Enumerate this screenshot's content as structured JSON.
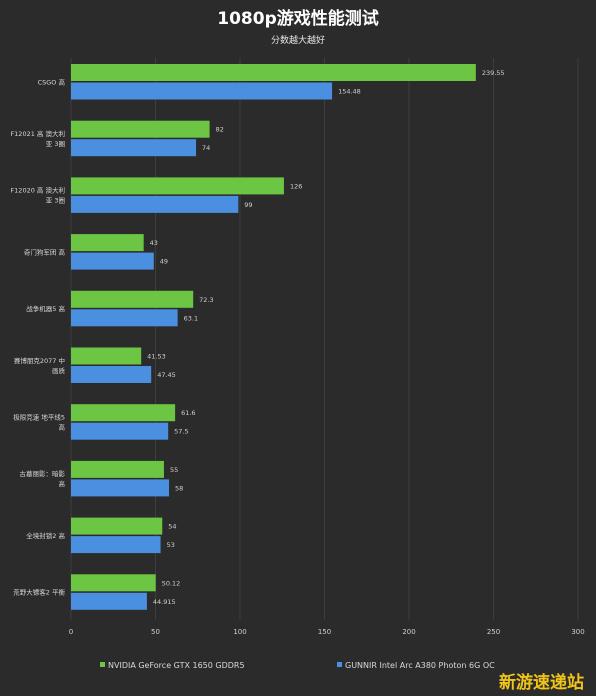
{
  "chart_data": {
    "type": "bar",
    "orientation": "horizontal",
    "title": "1080p游戏性能测试",
    "subtitle": "分数越大越好",
    "categories": [
      [
        "CSGO 高"
      ],
      [
        "F12021 高 澳大利",
        "亚 3圈"
      ],
      [
        "F12020 高 澳大利",
        "亚 3圈"
      ],
      [
        "奇门狗军团 高"
      ],
      [
        "战争机器5 高"
      ],
      [
        "赛博朋克2077 中",
        "画质"
      ],
      [
        "极限竞速 地平线5",
        "高"
      ],
      [
        "古墓丽影：暗影",
        "高"
      ],
      [
        "全境封锁2 高"
      ],
      [
        "荒野大镖客2 平衡"
      ]
    ],
    "series": [
      {
        "name": "NVIDIA GeForce GTX 1650  GDDR5",
        "color": "#6cc644",
        "values": [
          239.55,
          82,
          126,
          43,
          72.3,
          41.53,
          61.6,
          55,
          54,
          50.12
        ],
        "labels": [
          "239.55",
          "82",
          "126",
          "43",
          "72.3",
          "41.53",
          "61.6",
          "55",
          "54",
          "50.12"
        ]
      },
      {
        "name": "GUNNIR Intel Arc A380 Photon 6G OC",
        "color": "#4a8fe0",
        "values": [
          154.48,
          74,
          99,
          49,
          63.1,
          47.45,
          57.5,
          58,
          53,
          44.915
        ],
        "labels": [
          "154.48",
          "74",
          "99",
          "49",
          "63.1",
          "47.45",
          "57.5",
          "58",
          "53",
          "44.915"
        ]
      }
    ],
    "xlim": [
      0,
      300
    ],
    "xticks": [
      "0",
      "50",
      "100",
      "150",
      "200",
      "250",
      "300"
    ],
    "grid": true,
    "legend_position": "bottom"
  },
  "watermark": "新游速递站"
}
